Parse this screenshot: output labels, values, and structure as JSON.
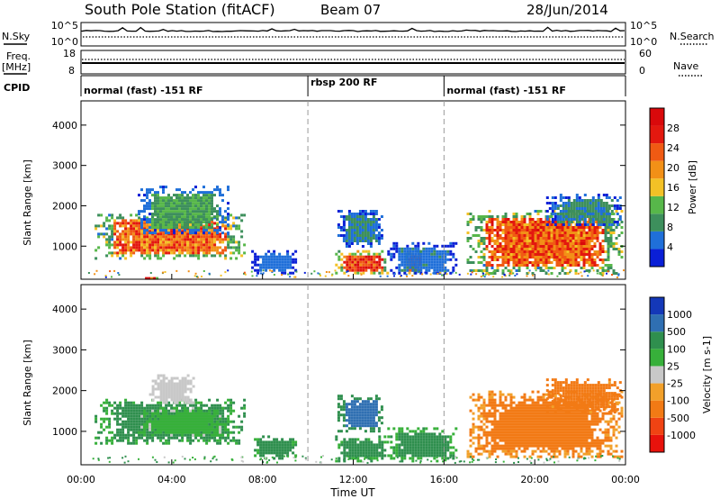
{
  "header": {
    "station": "South Pole Station (fitACF)",
    "beam": "Beam 07",
    "date": "28/Jun/2014"
  },
  "left_labels": {
    "nsky": "N.Sky",
    "freq": "Freq.",
    "freq_unit": "[MHz]",
    "cpid": "CPID"
  },
  "right_labels": {
    "nsearch": "N.Search",
    "nave": "Nave"
  },
  "noise_axis": {
    "left_ticks": [
      "10^5",
      "10^0"
    ],
    "right_ticks": [
      "10^5",
      "10^0"
    ]
  },
  "freq_axis": {
    "left_ticks": [
      "18",
      "8"
    ],
    "right_ticks": [
      "60",
      "0"
    ]
  },
  "cpid_segments": [
    {
      "label": "normal (fast) -151 RF",
      "start_hour": 0,
      "end_hour": 10.0
    },
    {
      "label": "rbsp 200 RF",
      "start_hour": 10.0,
      "end_hour": 16.0
    },
    {
      "label": "normal (fast) -151 RF",
      "start_hour": 16.0,
      "end_hour": 24
    }
  ],
  "colors": {
    "power": [
      "#0a1fd6",
      "#1f6fd9",
      "#3d8f5c",
      "#57b74a",
      "#f3c126",
      "#f29017",
      "#f05a13",
      "#e3180f",
      "#d9090b"
    ],
    "velocity": [
      "#e8120c",
      "#f04313",
      "#f27a15",
      "#f2a02a",
      "#c8c8c8",
      "#37b03a",
      "#2f8f4e",
      "#2f6fb2",
      "#1438b8"
    ]
  },
  "chart_data": [
    {
      "type": "heatmap",
      "name": "power",
      "xlabel": "",
      "ylabel": "Slant Range [km]",
      "xlim": [
        0,
        24
      ],
      "ylim": [
        180,
        4600
      ],
      "x_ticks": [
        "00:00",
        "04:00",
        "08:00",
        "12:00",
        "16:00",
        "20:00",
        "00:00"
      ],
      "y_ticks": [
        1000,
        2000,
        3000,
        4000
      ],
      "colorbar": {
        "label": "Power [dB]",
        "ticks": [
          "4",
          "8",
          "12",
          "16",
          "20",
          "24",
          "28"
        ],
        "range": [
          0,
          32
        ]
      },
      "regions": [
        {
          "x": [
            0.6,
            7.2
          ],
          "y": [
            700,
            1800
          ],
          "value": 22
        },
        {
          "x": [
            2.5,
            6.5
          ],
          "y": [
            1300,
            2500
          ],
          "value": 10
        },
        {
          "x": [
            7.5,
            9.5
          ],
          "y": [
            350,
            900
          ],
          "value": 5
        },
        {
          "x": [
            11.2,
            13.5
          ],
          "y": [
            300,
            900
          ],
          "value": 26
        },
        {
          "x": [
            11.3,
            13.3
          ],
          "y": [
            1000,
            1900
          ],
          "value": 7
        },
        {
          "x": [
            14.3,
            15.0
          ],
          "y": [
            300,
            900
          ],
          "value": 24
        },
        {
          "x": [
            13.5,
            16.5
          ],
          "y": [
            300,
            1100
          ],
          "value": 6
        },
        {
          "x": [
            17.0,
            23.8
          ],
          "y": [
            350,
            1900
          ],
          "value": 23
        },
        {
          "x": [
            20.5,
            23.8
          ],
          "y": [
            1500,
            2300
          ],
          "value": 8
        },
        {
          "x": [
            2.7,
            3.3
          ],
          "y": [
            180,
            300
          ],
          "value": 28
        }
      ]
    },
    {
      "type": "heatmap",
      "name": "velocity",
      "xlabel": "Time UT",
      "ylabel": "Slant Range [km]",
      "xlim": [
        0,
        24
      ],
      "ylim": [
        180,
        4600
      ],
      "x_ticks": [
        "00:00",
        "04:00",
        "08:00",
        "12:00",
        "16:00",
        "20:00",
        "00:00"
      ],
      "y_ticks": [
        1000,
        2000,
        3000,
        4000
      ],
      "colorbar": {
        "label": "Velocity [m s-1]",
        "ticks": [
          "1000",
          "500",
          "100",
          "25",
          "-25",
          "-100",
          "-500",
          "-1000"
        ],
        "bins": [
          -1500,
          -1000,
          -500,
          -100,
          -25,
          25,
          100,
          500,
          1000,
          1500
        ]
      },
      "regions": [
        {
          "x": [
            0.6,
            7.2
          ],
          "y": [
            700,
            1800
          ],
          "value": 200
        },
        {
          "x": [
            3.0,
            5.0
          ],
          "y": [
            1700,
            2400
          ],
          "value": 0
        },
        {
          "x": [
            2.5,
            6.5
          ],
          "y": [
            900,
            1600
          ],
          "value": 60
        },
        {
          "x": [
            7.5,
            9.5
          ],
          "y": [
            350,
            900
          ],
          "value": 200
        },
        {
          "x": [
            11.2,
            13.5
          ],
          "y": [
            300,
            900
          ],
          "value": 200
        },
        {
          "x": [
            11.3,
            13.3
          ],
          "y": [
            1000,
            1900
          ],
          "value": 700
        },
        {
          "x": [
            13.5,
            16.5
          ],
          "y": [
            300,
            1100
          ],
          "value": 150
        },
        {
          "x": [
            17.0,
            23.8
          ],
          "y": [
            350,
            2000
          ],
          "value": -200
        },
        {
          "x": [
            20.5,
            23.8
          ],
          "y": [
            1500,
            2300
          ],
          "value": -300
        }
      ]
    }
  ]
}
